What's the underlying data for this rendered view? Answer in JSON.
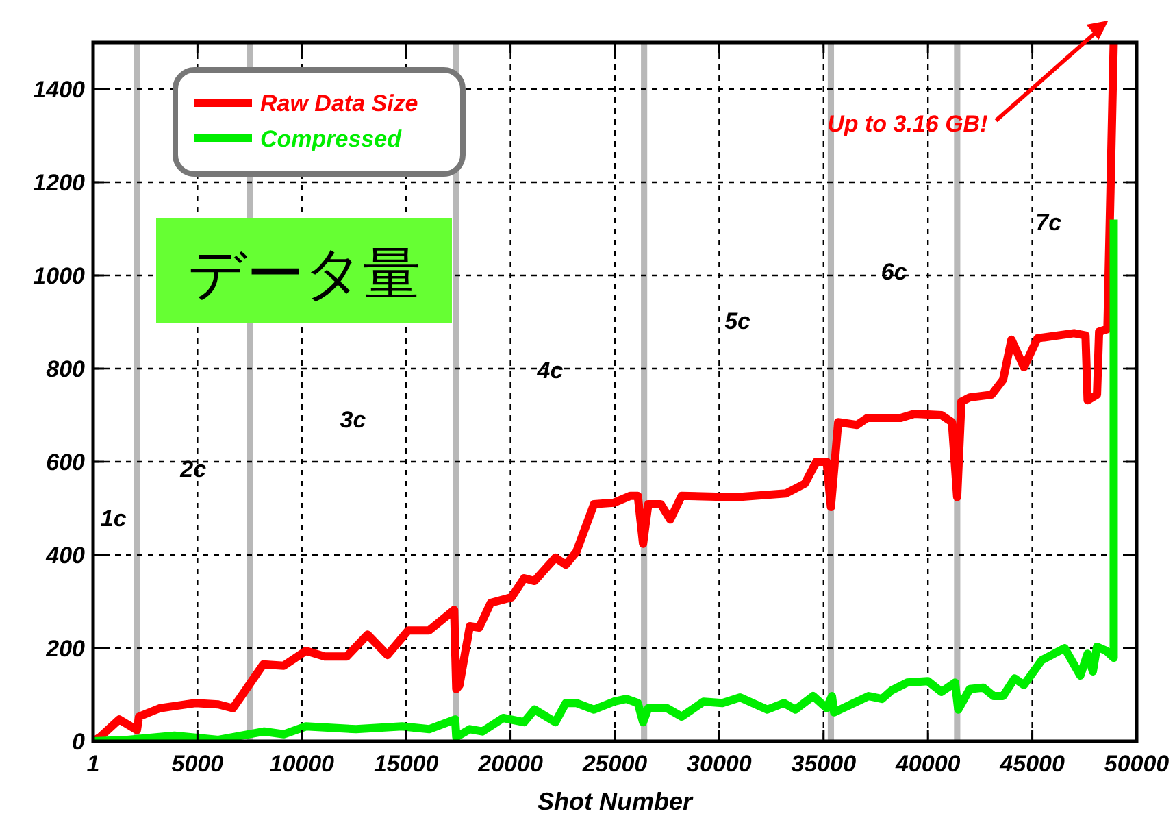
{
  "chart_data": {
    "type": "line",
    "xlabel": "Shot Number",
    "xlim": [
      1,
      50000
    ],
    "ylim": [
      0,
      1500
    ],
    "xticks": [
      1,
      5000,
      10000,
      15000,
      20000,
      25000,
      30000,
      35000,
      40000,
      45000,
      50000
    ],
    "yticks": [
      0,
      200,
      400,
      600,
      800,
      1000,
      1200,
      1400
    ],
    "grid": true,
    "legend": "top left",
    "line_style": "solid",
    "marker": "none",
    "series": [
      {
        "name": "Raw Data Size",
        "color": "#ff0000",
        "x": [
          1,
          330,
          1250,
          2100,
          2200,
          3200,
          4900,
          6000,
          6700,
          7150,
          8150,
          9130,
          10200,
          11100,
          12150,
          13150,
          14100,
          15100,
          16100,
          17300,
          17400,
          17550,
          18050,
          18500,
          19050,
          20050,
          20650,
          21150,
          22150,
          22650,
          23150,
          24000,
          24950,
          25750,
          26100,
          26350,
          26600,
          27200,
          27650,
          28200,
          30800,
          33200,
          34100,
          34650,
          35150,
          35350,
          35700,
          36600,
          37100,
          38700,
          39350,
          40650,
          41150,
          41400,
          41600,
          42000,
          43050,
          43600,
          44000,
          44600,
          45250,
          47000,
          47550,
          47650,
          48100,
          48200,
          48600,
          48900
        ],
        "values": [
          0,
          9,
          47,
          24,
          53,
          71,
          82,
          79,
          71,
          100,
          165,
          162,
          194,
          182,
          182,
          229,
          185,
          238,
          238,
          282,
          112,
          120,
          247,
          244,
          297,
          309,
          350,
          344,
          394,
          379,
          406,
          509,
          512,
          527,
          527,
          424,
          509,
          509,
          476,
          527,
          524,
          532,
          553,
          600,
          600,
          503,
          685,
          679,
          694,
          694,
          703,
          700,
          685,
          524,
          729,
          738,
          744,
          776,
          862,
          803,
          865,
          876,
          871,
          732,
          744,
          879,
          885,
          1500
        ]
      },
      {
        "name": "Compressed",
        "color": "#00ee00",
        "x": [
          1,
          1650,
          3900,
          6000,
          8200,
          9130,
          10200,
          12600,
          14800,
          16100,
          17350,
          17400,
          18050,
          18650,
          19650,
          20650,
          21150,
          22150,
          22650,
          23150,
          24000,
          24950,
          25550,
          26100,
          26350,
          26600,
          27500,
          28200,
          29250,
          30150,
          31000,
          32300,
          33100,
          33650,
          34500,
          35150,
          35400,
          35500,
          36450,
          37150,
          37800,
          38250,
          39000,
          40000,
          40650,
          41300,
          41450,
          42000,
          42650,
          43150,
          43600,
          44150,
          44600,
          45450,
          46550,
          47300,
          47650,
          47900,
          48100,
          48550,
          48900,
          48900
        ],
        "values": [
          0,
          3,
          12,
          3,
          21,
          15,
          32,
          26,
          32,
          26,
          47,
          9,
          26,
          21,
          50,
          41,
          68,
          41,
          82,
          82,
          68,
          85,
          91,
          82,
          41,
          71,
          71,
          53,
          85,
          82,
          94,
          68,
          82,
          68,
          97,
          71,
          97,
          62,
          82,
          97,
          91,
          109,
          126,
          129,
          106,
          126,
          68,
          112,
          115,
          97,
          97,
          135,
          121,
          174,
          200,
          141,
          188,
          150,
          203,
          194,
          179,
          1120
        ]
      }
    ],
    "bands": [
      {
        "axis": "x",
        "from": 1950,
        "to": 2250,
        "color": "#b8b8b8"
      },
      {
        "axis": "x",
        "from": 7350,
        "to": 7650,
        "color": "#b8b8b8"
      },
      {
        "axis": "x",
        "from": 17250,
        "to": 17550,
        "color": "#b8b8b8"
      },
      {
        "axis": "x",
        "from": 26250,
        "to": 26550,
        "color": "#b8b8b8"
      },
      {
        "axis": "x",
        "from": 35200,
        "to": 35500,
        "color": "#b8b8b8"
      },
      {
        "axis": "x",
        "from": 41250,
        "to": 41550,
        "color": "#b8b8b8"
      }
    ],
    "annotations": [
      "データ量",
      "Up to 3.16 GB!",
      "1c",
      "2c",
      "3c",
      "4c",
      "5c",
      "6c",
      "7c"
    ]
  }
}
